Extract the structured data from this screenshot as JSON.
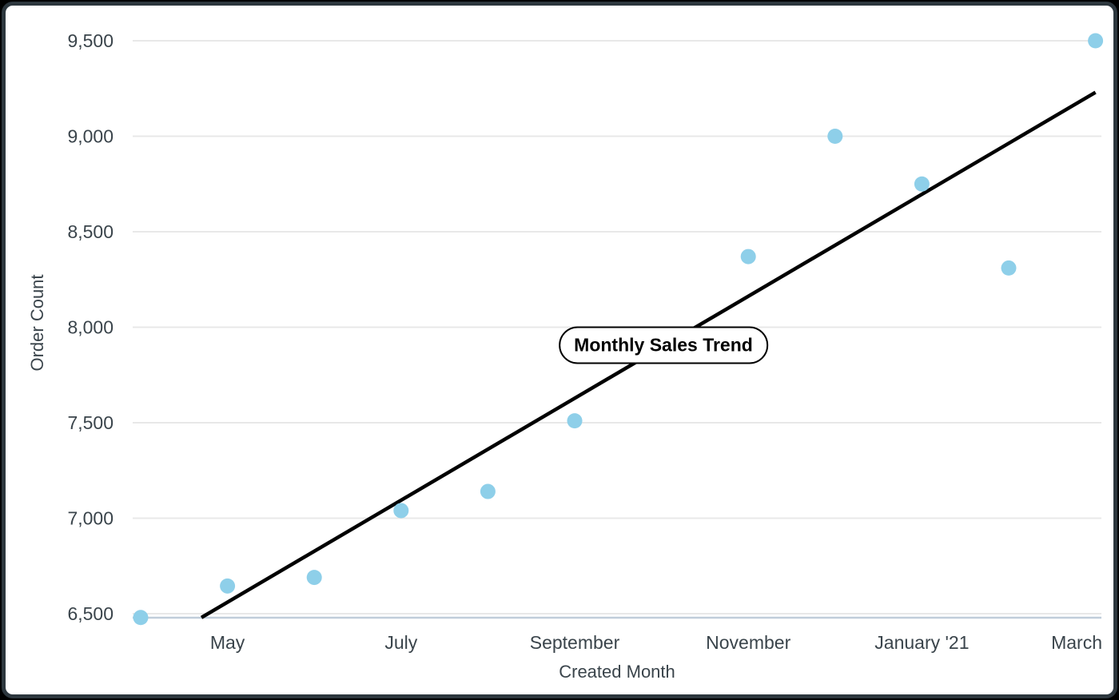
{
  "window": {
    "background_color": "#000000"
  },
  "card": {
    "background_color": "#ffffff",
    "border_color": "#2d373e"
  },
  "chart_data": {
    "type": "scatter",
    "title": "Monthly Sales Trend",
    "xlabel": "Created Month",
    "ylabel": "Order Count",
    "legend_position": "none",
    "grid": true,
    "xlim": [
      -0.1,
      11.1
    ],
    "ylim": [
      6479,
      9590
    ],
    "y_ticks": [
      {
        "value": 6500,
        "label": "6,500"
      },
      {
        "value": 7000,
        "label": "7,000"
      },
      {
        "value": 7500,
        "label": "7,500"
      },
      {
        "value": 8000,
        "label": "8,000"
      },
      {
        "value": 8500,
        "label": "8,500"
      },
      {
        "value": 9000,
        "label": "9,000"
      },
      {
        "value": 9500,
        "label": "9,500"
      }
    ],
    "x_ticks": [
      {
        "x": 1,
        "label": "May"
      },
      {
        "x": 3,
        "label": "July"
      },
      {
        "x": 5,
        "label": "September"
      },
      {
        "x": 7,
        "label": "November"
      },
      {
        "x": 9,
        "label": "January '21"
      },
      {
        "x": 11,
        "label": "March"
      }
    ],
    "points": [
      {
        "x": 0,
        "y": 6480
      },
      {
        "x": 1,
        "y": 6645
      },
      {
        "x": 2,
        "y": 6690
      },
      {
        "x": 3,
        "y": 7040
      },
      {
        "x": 4,
        "y": 7140
      },
      {
        "x": 5,
        "y": 7510
      },
      {
        "x": 7,
        "y": 8370
      },
      {
        "x": 8,
        "y": 9000
      },
      {
        "x": 9,
        "y": 8750
      },
      {
        "x": 10,
        "y": 8310
      },
      {
        "x": 11,
        "y": 9500
      }
    ],
    "trendline": {
      "x1": 0.7,
      "y1": 6480,
      "x2": 11,
      "y2": 9230
    },
    "colors": {
      "point": "#8ECFE9",
      "trend": "#000000",
      "grid_line": "#e8e8e8",
      "axis_line": "#c0cdda",
      "tick_text": "#3a444b"
    }
  }
}
